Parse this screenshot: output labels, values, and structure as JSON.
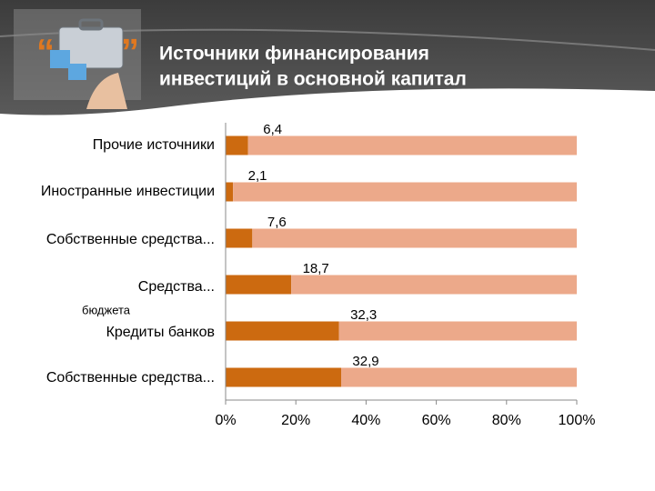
{
  "chart_data": {
    "type": "bar",
    "orientation": "horizontal",
    "stacked": true,
    "title": [
      "Источники финансирования",
      "инвестиций в основной капитал"
    ],
    "categories": [
      "Прочие источники",
      "Иностранные инвестиции",
      "Собственные средства...",
      "Средства...",
      "Кредиты банков",
      "Собственные средства..."
    ],
    "annotation": "бюджета",
    "series": [
      {
        "color": "#cc6a10",
        "values": [
          6.4,
          2.1,
          7.6,
          18.7,
          32.3,
          32.9
        ],
        "value_labels": [
          "6,4",
          "2,1",
          "7,6",
          "18,7",
          "32,3",
          "32,9"
        ]
      },
      {
        "color": "#eca98a",
        "values": [
          93.6,
          97.9,
          92.4,
          81.3,
          67.7,
          67.1
        ]
      }
    ],
    "xlim": [
      0,
      100
    ],
    "xticks": [
      {
        "value": 0,
        "label": "0%"
      },
      {
        "value": 20,
        "label": "20%"
      },
      {
        "value": 40,
        "label": "40%"
      },
      {
        "value": 60,
        "label": "60%"
      },
      {
        "value": 80,
        "label": "80%"
      },
      {
        "value": 100,
        "label": "100%"
      }
    ]
  }
}
